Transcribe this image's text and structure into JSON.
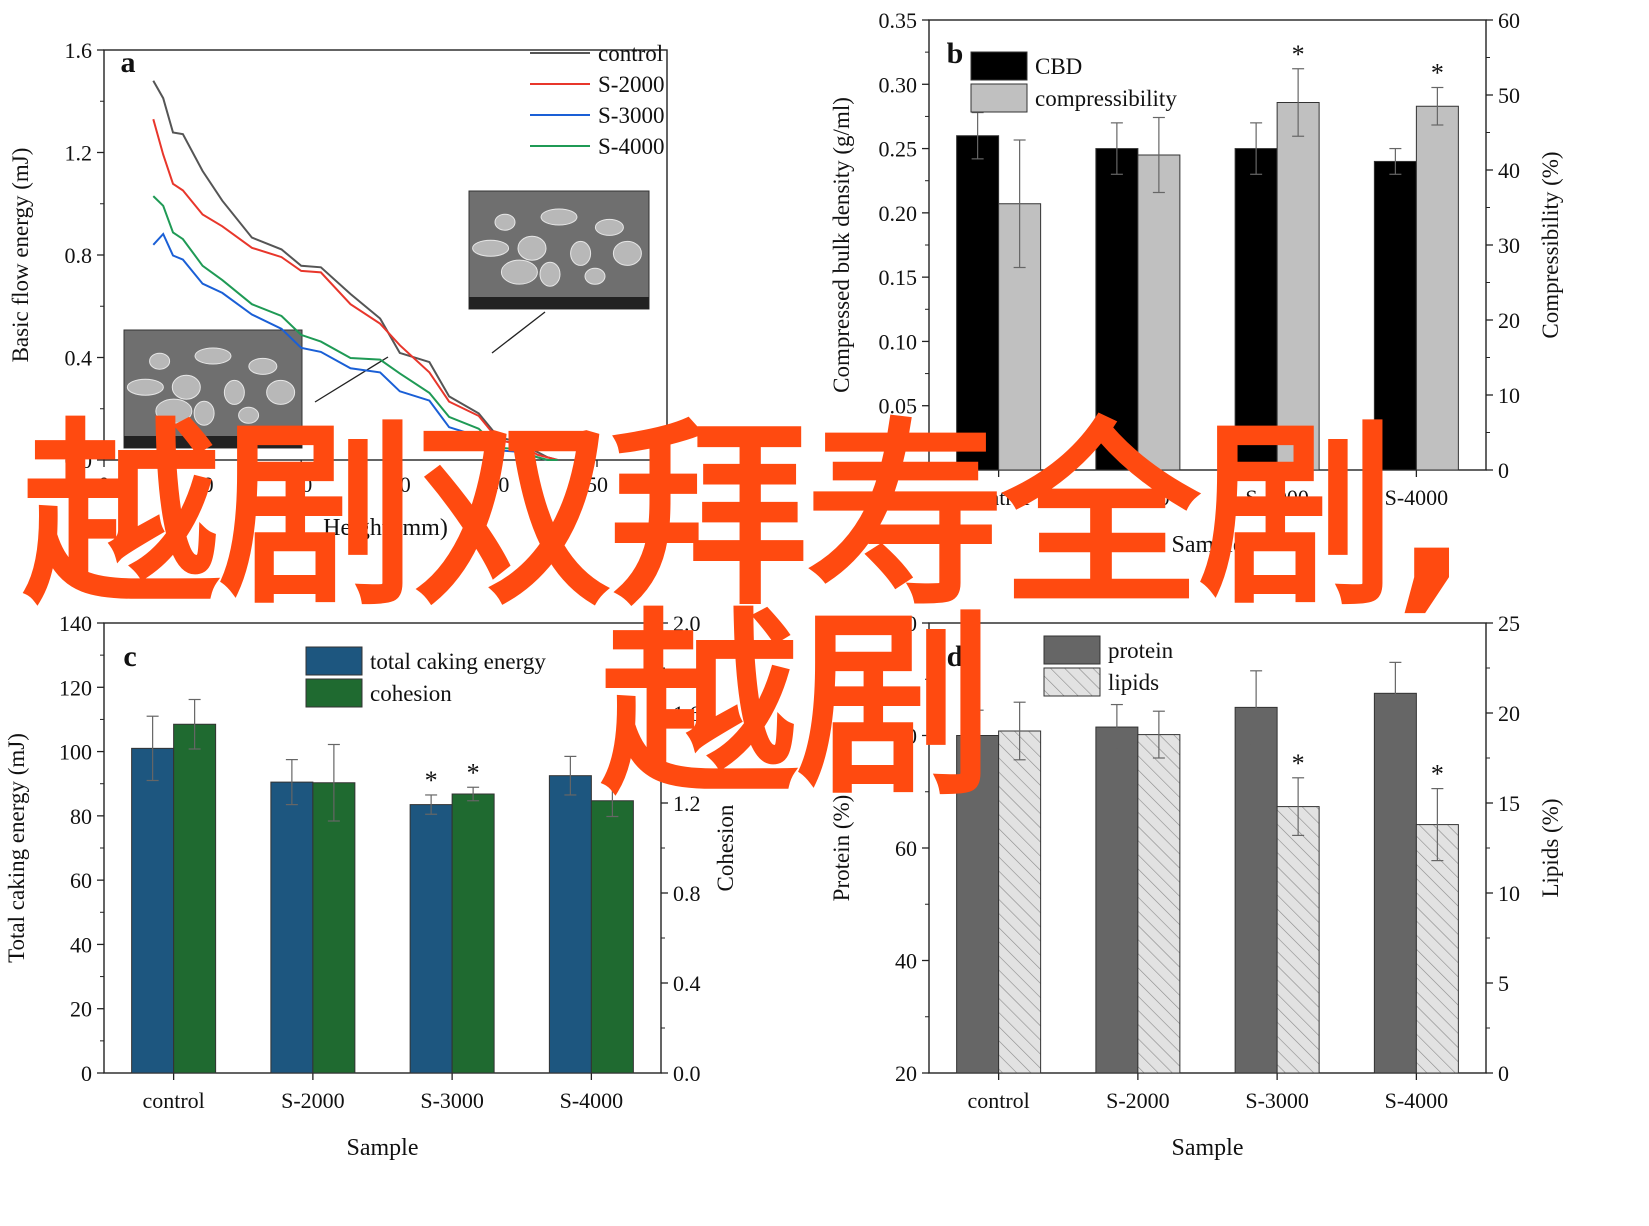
{
  "overlay": {
    "line1": "越剧双拜寿全剧,",
    "line2": "越剧",
    "color": "#ff4a10"
  },
  "chart_data": [
    {
      "panel": "a",
      "type": "line",
      "xlabel": "Height (mm)",
      "ylabel": "Basic flow energy (mJ)",
      "ylim": [
        0,
        1.6
      ],
      "xlim": [
        0,
        50
      ],
      "yticks": [
        "0.0",
        "0.4",
        "0.8",
        "1.2",
        "1.6"
      ],
      "xticks": [
        "0",
        "10",
        "20",
        "30",
        "40",
        "50"
      ],
      "legend_position": "top-right",
      "series": [
        {
          "name": "control",
          "color": "#555555",
          "x": [
            5,
            6,
            7,
            8,
            10,
            12,
            15,
            18,
            20,
            22,
            25,
            28,
            30,
            33,
            35,
            38,
            40,
            42,
            44,
            45,
            46
          ],
          "y": [
            1.48,
            1.4,
            1.29,
            1.26,
            1.14,
            1.0,
            0.88,
            0.81,
            0.77,
            0.74,
            0.66,
            0.54,
            0.43,
            0.37,
            0.26,
            0.17,
            0.1,
            0.06,
            0.03,
            0.01,
            0.0
          ]
        },
        {
          "name": "S-2000",
          "color": "#e8362b",
          "x": [
            5,
            6,
            7,
            8,
            10,
            12,
            15,
            18,
            20,
            22,
            25,
            28,
            30,
            33,
            35,
            38,
            40,
            42,
            44,
            45,
            46
          ],
          "y": [
            1.33,
            1.18,
            1.09,
            1.04,
            0.97,
            0.9,
            0.84,
            0.78,
            0.75,
            0.72,
            0.62,
            0.52,
            0.46,
            0.33,
            0.24,
            0.16,
            0.09,
            0.05,
            0.02,
            0.01,
            0.0
          ]
        },
        {
          "name": "S-3000",
          "color": "#1a5fd6",
          "x": [
            5,
            6,
            7,
            8,
            10,
            12,
            15,
            18,
            20,
            22,
            25,
            28,
            30,
            33,
            35,
            38,
            40,
            42,
            44,
            45,
            46
          ],
          "y": [
            0.84,
            0.87,
            0.81,
            0.77,
            0.7,
            0.64,
            0.58,
            0.5,
            0.45,
            0.41,
            0.37,
            0.33,
            0.28,
            0.22,
            0.14,
            0.08,
            0.05,
            0.02,
            0.01,
            0.0,
            0.0
          ]
        },
        {
          "name": "S-4000",
          "color": "#1f9a55",
          "x": [
            5,
            6,
            7,
            8,
            10,
            12,
            15,
            18,
            20,
            22,
            25,
            28,
            30,
            33,
            35,
            38,
            40,
            42,
            44,
            45,
            46
          ],
          "y": [
            1.03,
            0.98,
            0.9,
            0.85,
            0.77,
            0.69,
            0.62,
            0.55,
            0.5,
            0.45,
            0.41,
            0.38,
            0.35,
            0.25,
            0.18,
            0.11,
            0.06,
            0.03,
            0.01,
            0.0,
            0.0
          ]
        }
      ]
    },
    {
      "panel": "b",
      "type": "bar",
      "categories": [
        "control",
        "S-2000",
        "S-3000",
        "S-4000"
      ],
      "xlabel": "Sample",
      "ylabel": "Compressed bulk density (g/ml)",
      "y2label": "Compressibility (%)",
      "ylim": [
        0,
        0.35
      ],
      "y2lim": [
        0,
        60
      ],
      "yticks": [
        "0.00",
        "0.05",
        "0.10",
        "0.15",
        "0.20",
        "0.25",
        "0.30",
        "0.35"
      ],
      "y2ticks": [
        "0",
        "10",
        "20",
        "30",
        "40",
        "50",
        "60"
      ],
      "legend_position": "top-left",
      "series": [
        {
          "name": "CBD",
          "axis": "left",
          "color": "#000000",
          "values": [
            0.26,
            0.25,
            0.25,
            0.24
          ],
          "errors": [
            0.018,
            0.02,
            0.02,
            0.01
          ]
        },
        {
          "name": "compressibility",
          "axis": "right",
          "color": "#c0c0c0",
          "values": [
            35.5,
            42,
            49,
            48.5
          ],
          "errors": [
            8.5,
            5,
            4.5,
            2.5
          ],
          "stars": [
            false,
            false,
            true,
            true
          ]
        }
      ]
    },
    {
      "panel": "c",
      "type": "bar",
      "categories": [
        "control",
        "S-2000",
        "S-3000",
        "S-4000"
      ],
      "xlabel": "Sample",
      "ylabel": "Total caking energy (mJ)",
      "y2label": "Cohesion",
      "ylim": [
        0,
        140
      ],
      "y2lim": [
        0,
        2.0
      ],
      "yticks": [
        "0",
        "20",
        "40",
        "60",
        "80",
        "100",
        "120",
        "140"
      ],
      "y2ticks": [
        "0.0",
        "0.4",
        "0.8",
        "1.2",
        "1.6",
        "2.0"
      ],
      "legend_position": "top-center",
      "series": [
        {
          "name": "total caking energy",
          "axis": "left",
          "color": "#1d567f",
          "values": [
            101,
            90.5,
            83.5,
            92.5
          ],
          "errors": [
            10,
            7,
            3,
            6
          ],
          "stars": [
            false,
            false,
            true,
            false
          ]
        },
        {
          "name": "cohesion",
          "axis": "right",
          "color": "#1f6a30",
          "values": [
            1.55,
            1.29,
            1.24,
            1.21
          ],
          "errors": [
            0.11,
            0.17,
            0.03,
            0.07
          ],
          "stars": [
            false,
            false,
            true,
            false
          ]
        }
      ]
    },
    {
      "panel": "d",
      "type": "bar",
      "categories": [
        "control",
        "S-2000",
        "S-3000",
        "S-4000"
      ],
      "xlabel": "Sample",
      "ylabel": "Protein (%)",
      "y2label": "Lipids (%)",
      "ylim": [
        20,
        100
      ],
      "y2lim": [
        0,
        25
      ],
      "yticks": [
        "20",
        "40",
        "60",
        "80",
        "100"
      ],
      "y2ticks": [
        "0",
        "5",
        "10",
        "15",
        "20",
        "25"
      ],
      "legend_position": "top-left",
      "series": [
        {
          "name": "protein",
          "axis": "left",
          "color": "#666666",
          "values": [
            80,
            81.5,
            85,
            87.5
          ],
          "errors": [
            4.5,
            4,
            6.5,
            5.5
          ]
        },
        {
          "name": "lipids",
          "axis": "right",
          "color": "#d9d9d9",
          "pattern": "hatched",
          "values": [
            19,
            18.8,
            14.8,
            13.8
          ],
          "errors": [
            1.6,
            1.3,
            1.6,
            2.0
          ],
          "stars": [
            false,
            false,
            true,
            true
          ]
        }
      ]
    }
  ],
  "panel_labels": [
    "a",
    "b",
    "c",
    "d"
  ]
}
